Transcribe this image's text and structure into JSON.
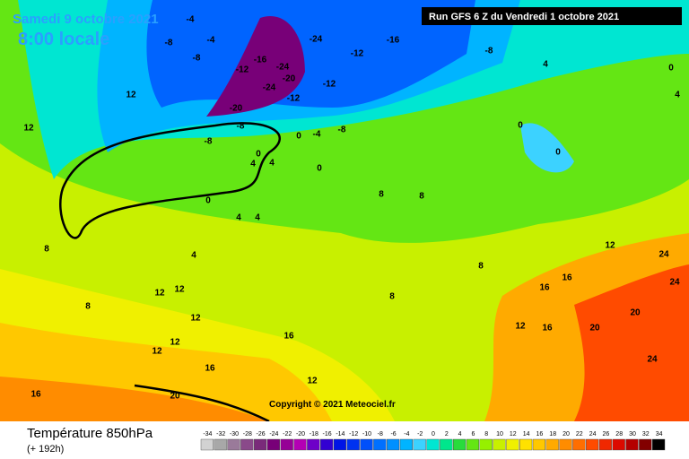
{
  "header": {
    "valid": "Samedi 9 octobre 2021",
    "local": "8:00 locale",
    "run": "Run GFS 6 Z du Vendredi 1 octobre 2021"
  },
  "footer": {
    "title": "Température 850hPa",
    "lead": "(+ 192h)",
    "copyright": "Copyright © 2021 Meteociel.fr"
  },
  "legend": {
    "ticks": [
      -34,
      -32,
      -30,
      -28,
      -26,
      -24,
      -22,
      -20,
      -18,
      -16,
      -14,
      -12,
      -10,
      -8,
      -6,
      -4,
      -2,
      0,
      2,
      4,
      6,
      8,
      10,
      12,
      14,
      16,
      18,
      20,
      22,
      24,
      26,
      28,
      30,
      32,
      34
    ],
    "colors": [
      "#d2d2d2",
      "#a8a8a8",
      "#9a7a9a",
      "#8a4a8a",
      "#7a2a7a",
      "#780078",
      "#960096",
      "#b400b4",
      "#6e00c8",
      "#3200d2",
      "#0014e6",
      "#0032f0",
      "#0050fa",
      "#0070ff",
      "#0090ff",
      "#00b4ff",
      "#3cd2ff",
      "#00e6d2",
      "#00e68c",
      "#28dc3c",
      "#64e614",
      "#96f000",
      "#c8f000",
      "#f0f000",
      "#ffe100",
      "#ffc800",
      "#ffaa00",
      "#ff8c00",
      "#ff6e00",
      "#ff4b00",
      "#f02800",
      "#dc0a00",
      "#b40000",
      "#820000",
      "#000000"
    ]
  },
  "contour_labels": [
    -4,
    -4,
    -8,
    -8,
    -12,
    -16,
    -24,
    -24,
    -16,
    -12,
    -8,
    -20,
    -24,
    -20,
    -12,
    -12,
    -8,
    -8,
    -4,
    -8,
    0,
    0,
    4,
    4,
    0,
    0,
    0,
    4,
    0,
    4,
    12,
    12,
    0,
    4,
    4,
    8,
    4,
    12,
    12,
    8,
    12,
    12,
    12,
    16,
    16,
    20,
    16,
    12,
    16,
    16,
    20,
    20,
    24,
    24,
    16,
    12,
    8,
    8,
    12,
    24,
    8,
    8
  ]
}
